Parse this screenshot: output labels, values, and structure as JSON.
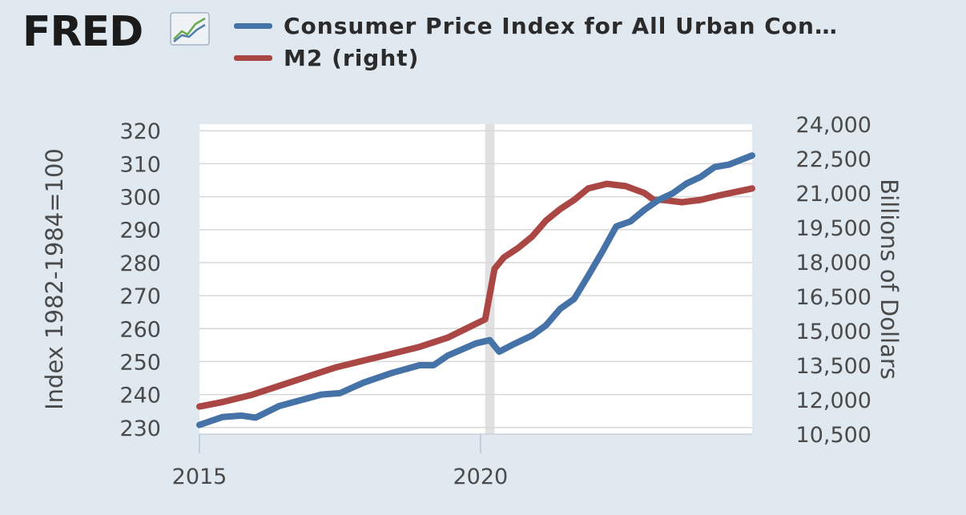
{
  "brand": {
    "logo_text": "FRED",
    "logo_icon": "line-chart-icon"
  },
  "legend": [
    {
      "label": "Consumer Price Index for All Urban Con…",
      "color": "#4572a7"
    },
    {
      "label": "M2 (right)",
      "color": "#aa4643"
    }
  ],
  "chart_data": {
    "type": "line",
    "title": "",
    "xlabel": "",
    "ylabel_left": "Index 1982-1984=100",
    "ylabel_right": "Billions of Dollars",
    "x_ticks": [
      "2015",
      "2020"
    ],
    "xlim": [
      "2015-01",
      "2024-11"
    ],
    "ylim_left": [
      228,
      322
    ],
    "ylim_right": [
      10500,
      24000
    ],
    "y_ticks_left": [
      230,
      240,
      250,
      260,
      270,
      280,
      290,
      300,
      310,
      320
    ],
    "y_ticks_right": [
      "10,500",
      "12,000",
      "13,500",
      "15,000",
      "16,500",
      "18,000",
      "19,500",
      "21,000",
      "22,500",
      "24,000"
    ],
    "y_ticks_right_values": [
      10500,
      12000,
      13500,
      15000,
      16500,
      18000,
      19500,
      21000,
      22500,
      24000
    ],
    "grid": true,
    "recession_shading": {
      "start": "2020-02",
      "end": "2020-04"
    },
    "series": [
      {
        "name": "Consumer Price Index for All Urban Con…",
        "axis": "left",
        "color": "#4572a7",
        "points": [
          [
            "2015-01",
            230.8
          ],
          [
            "2015-06",
            233.2
          ],
          [
            "2015-10",
            233.6
          ],
          [
            "2016-01",
            233.0
          ],
          [
            "2016-06",
            236.5
          ],
          [
            "2016-12",
            238.8
          ],
          [
            "2017-03",
            240.0
          ],
          [
            "2017-07",
            240.4
          ],
          [
            "2017-12",
            243.6
          ],
          [
            "2018-06",
            246.5
          ],
          [
            "2018-12",
            248.9
          ],
          [
            "2019-03",
            248.9
          ],
          [
            "2019-06",
            251.8
          ],
          [
            "2019-12",
            255.5
          ],
          [
            "2020-03",
            256.5
          ],
          [
            "2020-05",
            253.0
          ],
          [
            "2020-08",
            255.2
          ],
          [
            "2020-12",
            257.9
          ],
          [
            "2021-03",
            261.0
          ],
          [
            "2021-06",
            266.0
          ],
          [
            "2021-09",
            269.0
          ],
          [
            "2021-12",
            276.0
          ],
          [
            "2022-03",
            283.3
          ],
          [
            "2022-06",
            291.0
          ],
          [
            "2022-09",
            292.5
          ],
          [
            "2022-12",
            296.0
          ],
          [
            "2023-03",
            299.0
          ],
          [
            "2023-06",
            301.0
          ],
          [
            "2023-09",
            304.0
          ],
          [
            "2023-12",
            306.0
          ],
          [
            "2024-03",
            309.0
          ],
          [
            "2024-06",
            309.7
          ],
          [
            "2024-11",
            312.5
          ]
        ]
      },
      {
        "name": "M2 (right)",
        "axis": "right",
        "color": "#aa4643",
        "points": [
          [
            "2015-01",
            11700
          ],
          [
            "2015-06",
            11900
          ],
          [
            "2015-12",
            12200
          ],
          [
            "2016-06",
            12600
          ],
          [
            "2016-12",
            13000
          ],
          [
            "2017-06",
            13400
          ],
          [
            "2017-12",
            13700
          ],
          [
            "2018-06",
            14000
          ],
          [
            "2018-12",
            14300
          ],
          [
            "2019-06",
            14700
          ],
          [
            "2019-12",
            15300
          ],
          [
            "2020-02",
            15500
          ],
          [
            "2020-04",
            17700
          ],
          [
            "2020-06",
            18200
          ],
          [
            "2020-09",
            18600
          ],
          [
            "2020-12",
            19100
          ],
          [
            "2021-03",
            19800
          ],
          [
            "2021-06",
            20300
          ],
          [
            "2021-09",
            20700
          ],
          [
            "2021-12",
            21200
          ],
          [
            "2022-04",
            21400
          ],
          [
            "2022-08",
            21300
          ],
          [
            "2022-12",
            21000
          ],
          [
            "2023-02",
            20700
          ],
          [
            "2023-04",
            20700
          ],
          [
            "2023-08",
            20600
          ],
          [
            "2023-12",
            20700
          ],
          [
            "2024-04",
            20900
          ],
          [
            "2024-11",
            21200
          ]
        ]
      }
    ]
  }
}
